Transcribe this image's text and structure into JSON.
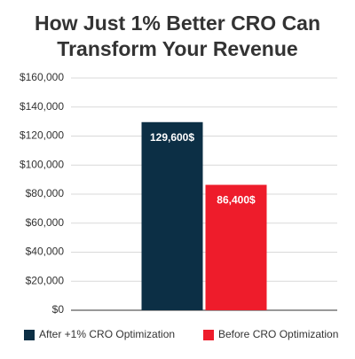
{
  "chart_data": {
    "type": "bar",
    "title": "How Just 1% Better CRO Can Transform Your Revenue",
    "categories": [
      null
    ],
    "series": [
      {
        "name": "After +1% CRO Optimization",
        "color": "#0c2f45",
        "values": [
          129600
        ],
        "value_labels": [
          "129,600$"
        ]
      },
      {
        "name": "Before CRO Optimization",
        "color": "#ee1c2b",
        "values": [
          86400
        ],
        "value_labels": [
          "86,400$"
        ]
      }
    ],
    "ylim": [
      0,
      160000
    ],
    "yticks": [
      {
        "value": 0,
        "label": "$0"
      },
      {
        "value": 20000,
        "label": "$20,000"
      },
      {
        "value": 40000,
        "label": "$40,000"
      },
      {
        "value": 60000,
        "label": "$60,000"
      },
      {
        "value": 80000,
        "label": "$80,000"
      },
      {
        "value": 100000,
        "label": "$100,000"
      },
      {
        "value": 120000,
        "label": "$120,000"
      },
      {
        "value": 140000,
        "label": "$140,000"
      },
      {
        "value": 160000,
        "label": "$160,000"
      }
    ],
    "grid": true
  }
}
